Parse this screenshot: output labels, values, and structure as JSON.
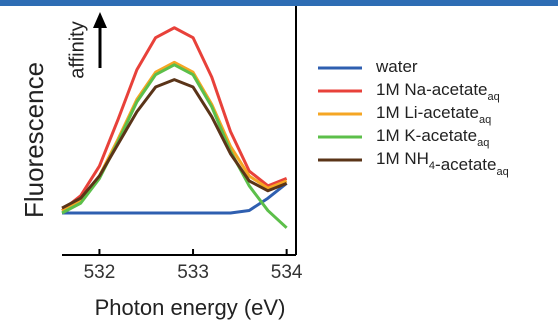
{
  "chart_data": {
    "type": "line",
    "ylabel": "Fluorescence",
    "xlabel": "Photon energy (eV)",
    "annotation": "affinity",
    "x": [
      531.6,
      531.8,
      532.0,
      532.2,
      532.4,
      532.6,
      532.8,
      533.0,
      533.2,
      533.4,
      533.6,
      533.8,
      534.0
    ],
    "xlim": [
      531.6,
      534.1
    ],
    "xticks": [
      532,
      533,
      534
    ],
    "ylim": [
      0,
      1
    ],
    "series": [
      {
        "name": [
          {
            "text": "water"
          }
        ],
        "color": "#2f5fb0",
        "values": [
          0.17,
          0.17,
          0.17,
          0.17,
          0.17,
          0.17,
          0.17,
          0.17,
          0.17,
          0.17,
          0.18,
          0.23,
          0.29
        ]
      },
      {
        "name": [
          {
            "text": "1M Na-acetate"
          },
          {
            "sub": "aq"
          }
        ],
        "color": "#e8413a",
        "values": [
          0.18,
          0.24,
          0.36,
          0.55,
          0.75,
          0.88,
          0.92,
          0.88,
          0.72,
          0.5,
          0.34,
          0.28,
          0.31
        ]
      },
      {
        "name": [
          {
            "text": "1M Li-acetate"
          },
          {
            "sub": "aq"
          }
        ],
        "color": "#f5a623",
        "values": [
          0.18,
          0.22,
          0.32,
          0.47,
          0.63,
          0.74,
          0.78,
          0.74,
          0.61,
          0.44,
          0.32,
          0.27,
          0.3
        ]
      },
      {
        "name": [
          {
            "text": "1M K-acetate"
          },
          {
            "sub": "aq"
          }
        ],
        "color": "#5cbf4a",
        "values": [
          0.17,
          0.21,
          0.31,
          0.46,
          0.62,
          0.73,
          0.77,
          0.73,
          0.6,
          0.42,
          0.28,
          0.18,
          0.11
        ]
      },
      {
        "name": [
          {
            "text": "1M NH"
          },
          {
            "sub": "4"
          },
          {
            "text": "-acetate"
          },
          {
            "sub": "aq"
          }
        ],
        "color": "#5a3418",
        "values": [
          0.19,
          0.23,
          0.32,
          0.45,
          0.58,
          0.68,
          0.71,
          0.68,
          0.56,
          0.41,
          0.3,
          0.26,
          0.29
        ]
      }
    ]
  }
}
